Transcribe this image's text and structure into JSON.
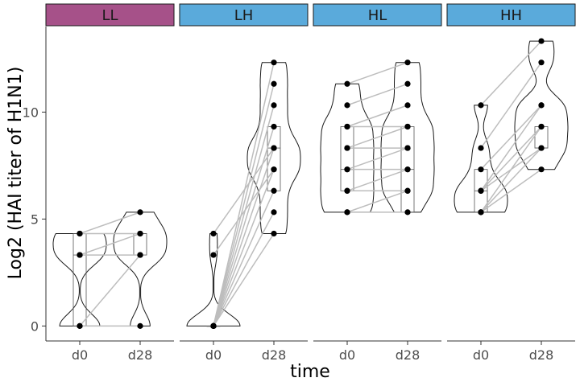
{
  "chart_data": {
    "type": "violin",
    "xlabel": "time",
    "ylabel": "Log2 (HAI titer of H1N1)",
    "categories": [
      "d0",
      "d28"
    ],
    "ylim": [
      -0.7,
      14.0
    ],
    "yticks": [
      0,
      5,
      10
    ],
    "grid": false,
    "colors": {
      "LL": "#a65189",
      "LH": "#5aaadb",
      "HL": "#5aaadb",
      "HH": "#5aaadb",
      "pair_line": "#bdbdbd",
      "point": "#000000"
    },
    "panels": [
      {
        "name": "LL",
        "pairs": [
          [
            4.32,
            4.32
          ],
          [
            4.32,
            5.32
          ],
          [
            3.32,
            3.32
          ],
          [
            3.32,
            4.32
          ],
          [
            0,
            0
          ],
          [
            0,
            3.32
          ]
        ],
        "box": {
          "d0": [
            0.0,
            3.32,
            4.32
          ],
          "d28": [
            3.32,
            4.32,
            4.32
          ]
        }
      },
      {
        "name": "LH",
        "pairs": [
          [
            4.32,
            8.32
          ],
          [
            3.32,
            7.32
          ],
          [
            0,
            12.32
          ],
          [
            0,
            11.32
          ],
          [
            0,
            10.32
          ],
          [
            0,
            9.32
          ],
          [
            0,
            8.32
          ],
          [
            0,
            7.32
          ],
          [
            0,
            6.32
          ],
          [
            0,
            5.32
          ],
          [
            0,
            4.32
          ]
        ],
        "box": {
          "d0": [
            0,
            0,
            0
          ],
          "d28": [
            6.32,
            8.32,
            9.32
          ]
        }
      },
      {
        "name": "HL",
        "pairs": [
          [
            11.32,
            12.32
          ],
          [
            10.32,
            11.32
          ],
          [
            9.32,
            10.32
          ],
          [
            9.32,
            9.32
          ],
          [
            8.32,
            9.32
          ],
          [
            8.32,
            8.32
          ],
          [
            7.32,
            8.32
          ],
          [
            7.32,
            7.32
          ],
          [
            6.32,
            7.32
          ],
          [
            6.32,
            6.32
          ],
          [
            5.32,
            6.32
          ],
          [
            5.32,
            5.32
          ]
        ],
        "box": {
          "d0": [
            6.32,
            7.32,
            9.32
          ],
          "d28": [
            5.32,
            7.32,
            9.32
          ]
        }
      },
      {
        "name": "HH",
        "pairs": [
          [
            10.32,
            13.32
          ],
          [
            8.32,
            12.32
          ],
          [
            7.32,
            10.32
          ],
          [
            6.32,
            10.32
          ],
          [
            6.32,
            9.32
          ],
          [
            5.32,
            9.32
          ],
          [
            5.32,
            8.32
          ],
          [
            5.32,
            7.32
          ],
          [
            6.32,
            8.32
          ]
        ],
        "box": {
          "d0": [
            5.32,
            6.32,
            7.32
          ],
          "d28": [
            8.32,
            8.32,
            9.32
          ]
        }
      }
    ]
  }
}
